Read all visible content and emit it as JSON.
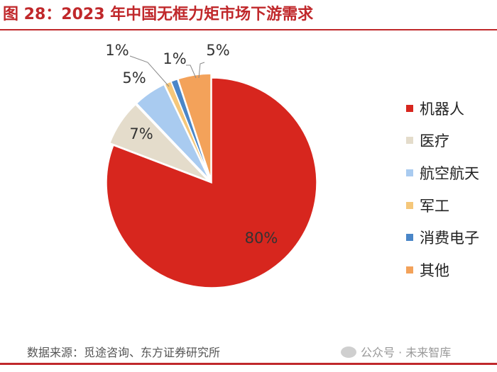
{
  "title": "图 28：2023 年中国无框力矩市场下游需求",
  "source": "数据来源：觅途咨询、东方证券研究所",
  "watermark": "公众号 · 未来智库",
  "chart_data": {
    "type": "pie",
    "title": "图 28：2023 年中国无框力矩市场下游需求",
    "slices": [
      {
        "label": "机器人",
        "value": 80,
        "display": "80%",
        "color": "#d7261e"
      },
      {
        "label": "医疗",
        "value": 7,
        "display": "7%",
        "color": "#e4dccb"
      },
      {
        "label": "航空航天",
        "value": 5,
        "display": "5%",
        "color": "#a9cbf0"
      },
      {
        "label": "军工",
        "value": 1,
        "display": "1%",
        "color": "#f5c77a"
      },
      {
        "label": "消费电子",
        "value": 1,
        "display": "1%",
        "color": "#4a86c8"
      },
      {
        "label": "其他",
        "value": 5,
        "display": "5%",
        "color": "#f3a25a"
      }
    ],
    "legend_position": "right"
  }
}
